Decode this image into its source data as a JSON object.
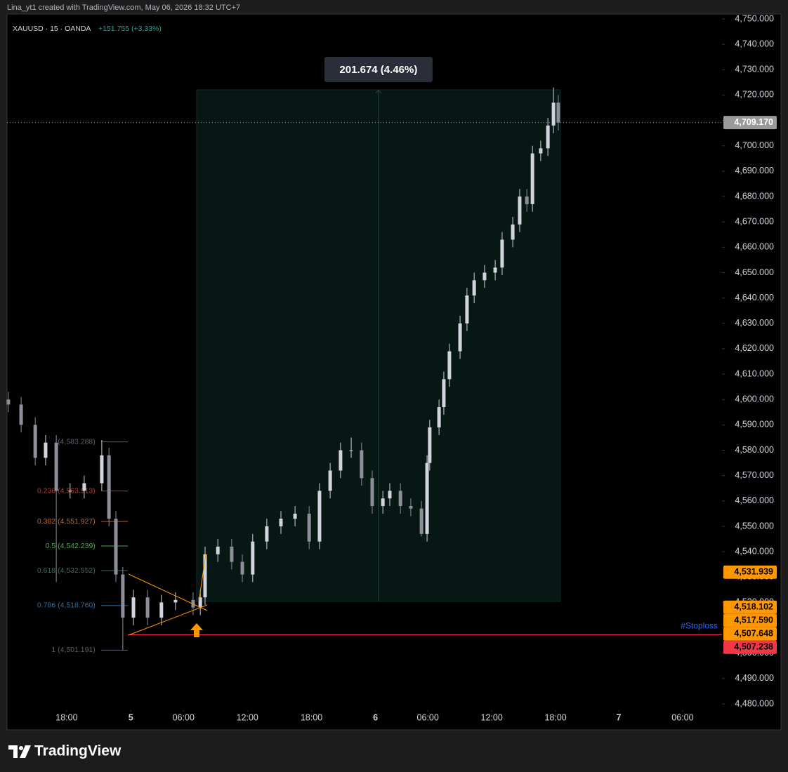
{
  "chart_data": {
    "type": "candlestick",
    "credit": "Lina_yt1 created with TradingView.com, May 06, 2026 18:32 UTC+7",
    "title": "XAUUSD · 15 · OANDA",
    "change": "+151.755 (+3.33%)",
    "logo": "TradingView",
    "up_color": "#d1d4dc",
    "down_color": "#8c8f99",
    "x": [
      0.5,
      5.3,
      10.6,
      14.5,
      18.5,
      23.7,
      29.0,
      35.6,
      38.3,
      40.9,
      43.5,
      47.5,
      52.8,
      58.0,
      63.3,
      69.9,
      72.6,
      74.4,
      79.2,
      84.4,
      88.4,
      92.3,
      97.6,
      102.9,
      108.2,
      113.5,
      117.4,
      121.4,
      125.3,
      129.3,
      133.2,
      137.2,
      141.2,
      143.8,
      147.8,
      151.7,
      155.7,
      157.8,
      158.8,
      162.3,
      164.1,
      166.2,
      170.2,
      172.8,
      175.5,
      179.4,
      183.4,
      186.0,
      190.0,
      192.6,
      195.3,
      197.4,
      200.5,
      203.2,
      205.3,
      207.1
    ],
    "open": [
      4600,
      4598,
      4590,
      4577,
      4583,
      4564,
      4564,
      4567,
      4578,
      4553,
      4531,
      4514,
      4522,
      4514,
      4520,
      4521,
      4518,
      4522,
      4539,
      4542,
      4536,
      4531,
      4544,
      4550,
      4553,
      4555,
      4544,
      4564,
      4572,
      4580,
      4580,
      4569,
      4558,
      4561,
      4564,
      4558,
      4557,
      4547,
      4575,
      4589,
      4597,
      4608,
      4619,
      4630,
      4641,
      4647,
      4650,
      4652,
      4663,
      4669,
      4680,
      4677,
      4697,
      4699,
      4708,
      4717
    ],
    "high": [
      4603,
      4601,
      4593,
      4586,
      4586,
      4567,
      4570,
      4584,
      4581,
      4556,
      4534,
      4525,
      4525,
      4523,
      4524,
      4524,
      4525,
      4542,
      4545,
      4545,
      4539,
      4547,
      4553,
      4556,
      4558,
      4558,
      4567,
      4575,
      4583,
      4585,
      4583,
      4572,
      4564,
      4567,
      4567,
      4561,
      4560,
      4578,
      4592,
      4600,
      4611,
      4622,
      4633,
      4644,
      4650,
      4653,
      4655,
      4666,
      4672,
      4683,
      4683,
      4700,
      4702,
      4711,
      4723,
      4720
    ],
    "low": [
      4595,
      4587,
      4574,
      4574,
      4528,
      4561,
      4561,
      4564,
      4550,
      4528,
      4501.2,
      4511,
      4511,
      4511,
      4517,
      4515,
      4515,
      4519,
      4536,
      4533,
      4528,
      4528,
      4541,
      4547,
      4550,
      4541,
      4541,
      4561,
      4569,
      4577,
      4566,
      4555,
      4555,
      4558,
      4555,
      4554,
      4546,
      4544,
      4572,
      4586,
      4594,
      4605,
      4616,
      4627,
      4638,
      4644,
      4647,
      4649,
      4660,
      4666,
      4674,
      4674,
      4694,
      4696,
      4705,
      4706
    ],
    "close": [
      4598,
      4590,
      4577,
      4583,
      4564,
      4564,
      4567,
      4578,
      4553,
      4531,
      4514,
      4522,
      4514,
      4520,
      4521,
      4518,
      4522,
      4539,
      4542,
      4536,
      4531,
      4544,
      4550,
      4553,
      4555,
      4544,
      4564,
      4572,
      4580,
      4580,
      4569,
      4558,
      4561,
      4564,
      4558,
      4557,
      4547,
      4575,
      4589,
      4597,
      4608,
      4619,
      4630,
      4641,
      4647,
      4650,
      4652,
      4663,
      4669,
      4680,
      4677,
      4697,
      4699,
      4708,
      4717,
      4709.17
    ],
    "xlim": [
      0,
      268.6
    ],
    "xticks": [
      {
        "value": 22.4,
        "label": "18:00"
      },
      {
        "value": 46.5,
        "label": "5"
      },
      {
        "value": 66.3,
        "label": "06:00"
      },
      {
        "value": 90.3,
        "label": "12:00"
      },
      {
        "value": 114.4,
        "label": "18:00"
      },
      {
        "value": 138.4,
        "label": "6"
      },
      {
        "value": 158.1,
        "label": "06:00"
      },
      {
        "value": 182.1,
        "label": "12:00"
      },
      {
        "value": 206.1,
        "label": "18:00"
      },
      {
        "value": 229.8,
        "label": "7"
      },
      {
        "value": 253.8,
        "label": "06:00"
      }
    ],
    "ylim": [
      4480,
      4750
    ],
    "yticks": [
      {
        "value": 4480,
        "label": "4,480.000"
      },
      {
        "value": 4490,
        "label": "4,490.000"
      },
      {
        "value": 4500,
        "label": "4,500.000"
      },
      {
        "value": 4510,
        "label": "4,510.000"
      },
      {
        "value": 4520,
        "label": "4,520.000"
      },
      {
        "value": 4530,
        "label": "4,530.000"
      },
      {
        "value": 4540,
        "label": "4,540.000"
      },
      {
        "value": 4550,
        "label": "4,550.000"
      },
      {
        "value": 4560,
        "label": "4,560.000"
      },
      {
        "value": 4570,
        "label": "4,570.000"
      },
      {
        "value": 4580,
        "label": "4,580.000"
      },
      {
        "value": 4590,
        "label": "4,590.000"
      },
      {
        "value": 4600,
        "label": "4,600.000"
      },
      {
        "value": 4610,
        "label": "4,610.000"
      },
      {
        "value": 4620,
        "label": "4,620.000"
      },
      {
        "value": 4630,
        "label": "4,630.000"
      },
      {
        "value": 4640,
        "label": "4,640.000"
      },
      {
        "value": 4650,
        "label": "4,650.000"
      },
      {
        "value": 4660,
        "label": "4,660.000"
      },
      {
        "value": 4670,
        "label": "4,670.000"
      },
      {
        "value": 4680,
        "label": "4,680.000"
      },
      {
        "value": 4690,
        "label": "4,690.000"
      },
      {
        "value": 4700,
        "label": "4,700.000"
      },
      {
        "value": 4710,
        "label": "4,710.000"
      },
      {
        "value": 4720,
        "label": "4,720.000"
      },
      {
        "value": 4730,
        "label": "4,730.000"
      },
      {
        "value": 4740,
        "label": "4,740.000"
      },
      {
        "value": 4750,
        "label": "4,750.000"
      }
    ],
    "fib_x": [
      35.3,
      45.4
    ],
    "fib": [
      {
        "label": "(4,583.288)",
        "value": 4583.288,
        "color": "#5d606b"
      },
      {
        "label": "0.236 (4,563.913)",
        "value": 4563.913,
        "color": "#b23a36"
      },
      {
        "label": "0.382 (4,551.927)",
        "value": 4551.927,
        "color": "#c0652a"
      },
      {
        "label": "0.5 (4,542.239)",
        "value": 4542.239,
        "color": "#4caf50"
      },
      {
        "label": "0.618 (4,532.552)",
        "value": 4532.552,
        "color": "#3e6e60"
      },
      {
        "label": "0.786 (4,518.760)",
        "value": 4518.76,
        "color": "#2f6fa0"
      },
      {
        "label": "1 (4,501.191)",
        "value": 4501.191,
        "color": "#5d606b"
      }
    ],
    "measure": {
      "label": "201.674 (4.46%)",
      "from": 4520.396,
      "to": 4722.07,
      "x": [
        71.2,
        207.9
      ]
    },
    "stoploss": {
      "label": "#Stoploss",
      "value": 4507.238,
      "x_start": 45.4,
      "color": "#f23645",
      "label_color": "#2962ff"
    },
    "price_labels": [
      {
        "value": 4709.17,
        "label": "4,709.170",
        "color": "#9a9a9a"
      },
      {
        "value": 4531.939,
        "label": "4,531.939",
        "color": "#ff9800"
      },
      {
        "value": 4518.102,
        "label": "4,518.102",
        "color": "#ff9800"
      },
      {
        "value": 4517.59,
        "label": "4,517.590",
        "color": "#ff9800"
      },
      {
        "value": 4507.648,
        "label": "4,507.648",
        "color": "#ff9800"
      },
      {
        "value": 4507.238,
        "label": "4,507.238",
        "color": "#f23645"
      }
    ]
  }
}
